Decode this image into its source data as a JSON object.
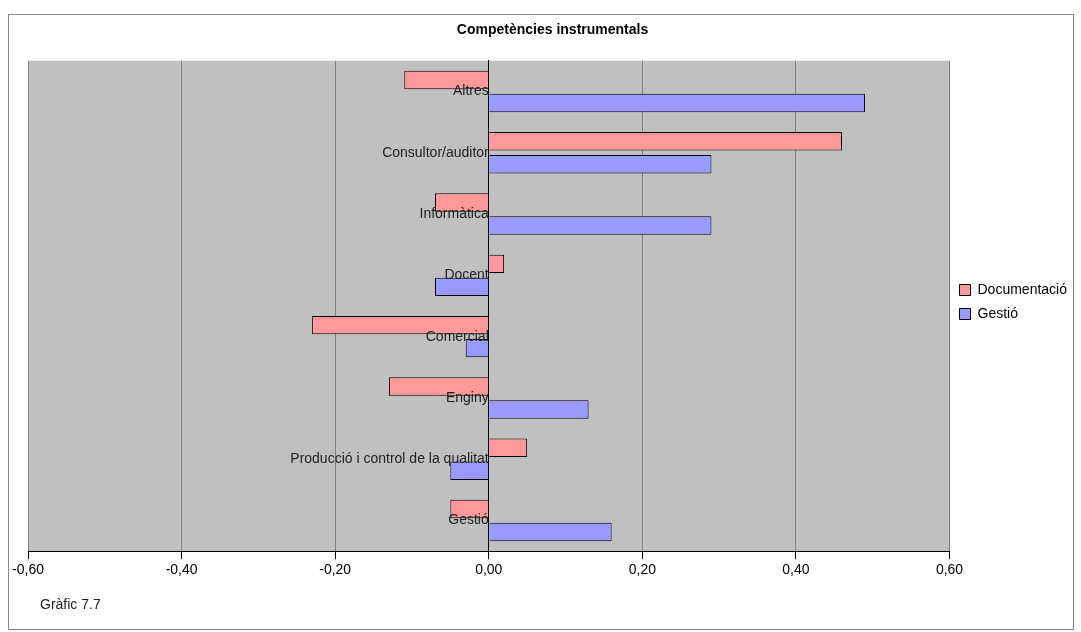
{
  "chart_data": {
    "type": "bar",
    "orientation": "horizontal",
    "title": "Competències instrumentals",
    "categories": [
      "Altres",
      "Consultor/auditor",
      "Informàtica",
      "Docent",
      "Comercial",
      "Enginy",
      "Producció i control de la qualitat",
      "Gestió"
    ],
    "series": [
      {
        "name": "Documentació",
        "color": "#ff9999",
        "values": [
          -0.11,
          0.46,
          -0.07,
          0.02,
          -0.23,
          -0.13,
          0.05,
          -0.05
        ]
      },
      {
        "name": "Gestió",
        "color": "#9999ff",
        "values": [
          0.49,
          0.29,
          0.29,
          -0.07,
          -0.03,
          0.13,
          -0.05,
          0.16
        ]
      }
    ],
    "xlim": [
      -0.6,
      0.6
    ],
    "xticks": [
      {
        "value": -0.6,
        "label": "-0,60"
      },
      {
        "value": -0.4,
        "label": "-0,40"
      },
      {
        "value": -0.2,
        "label": "-0,20"
      },
      {
        "value": 0,
        "label": "0,00"
      },
      {
        "value": 0.2,
        "label": "0,20"
      },
      {
        "value": 0.4,
        "label": "0,40"
      },
      {
        "value": 0.6,
        "label": "0,60"
      }
    ],
    "grid": "x",
    "legend": "right",
    "annotations": [
      "Gràfic 7.7"
    ]
  }
}
